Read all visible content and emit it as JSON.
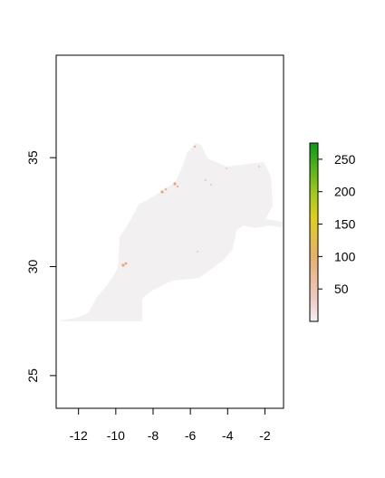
{
  "map": {
    "x_axis": {
      "ticks": [
        -12,
        -10,
        -8,
        -6,
        -4,
        -2
      ],
      "tick_labels": [
        "-12",
        "-10",
        "-8",
        "-6",
        "-4",
        "-2"
      ],
      "range": [
        -13.2,
        -1.0
      ]
    },
    "y_axis": {
      "ticks": [
        25,
        30,
        35
      ],
      "tick_labels": [
        "25",
        "30",
        "35"
      ],
      "range": [
        23.5,
        39.7
      ]
    },
    "land_fill_color": "#f2f0f0",
    "hotspot_color": "#e9a47c",
    "legend": {
      "ticks": [
        50,
        100,
        150,
        200,
        250
      ],
      "tick_labels": [
        "50",
        "100",
        "150",
        "200",
        "250"
      ],
      "range": [
        0,
        275
      ],
      "gradient_stops": [
        {
          "value": 0,
          "color": "#f2f2f2"
        },
        {
          "value": 35,
          "color": "#f1c9c5"
        },
        {
          "value": 100,
          "color": "#e6b06e"
        },
        {
          "value": 160,
          "color": "#dfcf1e"
        },
        {
          "value": 200,
          "color": "#9dc81d"
        },
        {
          "value": 275,
          "color": "#0b9a17"
        }
      ]
    }
  }
}
